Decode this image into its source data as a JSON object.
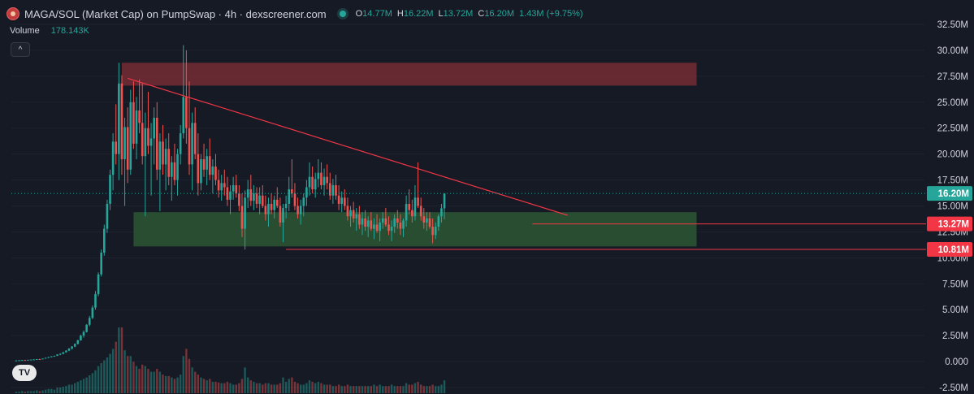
{
  "header": {
    "title": "MAGA/SOL (Market Cap) on PumpSwap · 4h · dexscreener.com",
    "ohlc": {
      "o_label": "O",
      "o_value": "14.77M",
      "h_label": "H",
      "h_value": "16.22M",
      "l_label": "L",
      "l_value": "13.72M",
      "c_label": "C",
      "c_value": "16.20M",
      "change": "1.43M (+9.75%)"
    }
  },
  "volume": {
    "label": "Volume",
    "value": "178.143K"
  },
  "collapse_label": "^",
  "tv_logo_label": "TV",
  "colors": {
    "background": "#161a25",
    "up": "#26a69a",
    "down": "#ef5350",
    "resistance_zone": "#7a2d36",
    "support_zone": "#2d5a34",
    "trendline": "#f23645",
    "current_price_tag": "#26a69a",
    "level_tag": "#f23645"
  },
  "chart_data": {
    "type": "candlestick",
    "y_axis": {
      "ylim": [
        -2500000,
        32500000
      ],
      "ticks": [
        "32.50M",
        "30.00M",
        "27.50M",
        "25.00M",
        "22.50M",
        "20.00M",
        "17.50M",
        "15.00M",
        "12.50M",
        "10.00M",
        "7.50M",
        "5.00M",
        "2.50M",
        "0.000",
        "-2.50M"
      ],
      "tick_values": [
        32500000,
        30000000,
        27500000,
        25000000,
        22500000,
        20000000,
        17500000,
        15000000,
        12500000,
        10000000,
        7500000,
        5000000,
        2500000,
        0,
        -2500000
      ]
    },
    "price_tags": [
      {
        "label": "16.20M",
        "value": 16200000,
        "kind": "current"
      },
      {
        "label": "13.27M",
        "value": 13270000,
        "kind": "level"
      },
      {
        "label": "10.81M",
        "value": 10810000,
        "kind": "level"
      }
    ],
    "zones": [
      {
        "name": "resistance",
        "from_index": 36,
        "to_index": 232,
        "y_low": 26600000,
        "y_high": 28800000
      },
      {
        "name": "support",
        "from_index": 40,
        "to_index": 232,
        "y_low": 11100000,
        "y_high": 14400000
      }
    ],
    "trendline": {
      "from_index": 38,
      "from_value": 27300000,
      "to_index": 188,
      "to_value": 14100000
    },
    "levels": [
      {
        "value": 13270000,
        "from_index": 176
      },
      {
        "value": 10810000,
        "from_index": 92
      }
    ],
    "candles": [
      [
        0.1,
        0.12,
        0.08,
        0.11,
        2
      ],
      [
        0.11,
        0.14,
        0.1,
        0.13,
        2
      ],
      [
        0.13,
        0.16,
        0.12,
        0.15,
        3
      ],
      [
        0.15,
        0.17,
        0.13,
        0.14,
        2
      ],
      [
        0.14,
        0.18,
        0.14,
        0.17,
        3
      ],
      [
        0.17,
        0.2,
        0.16,
        0.19,
        3
      ],
      [
        0.19,
        0.22,
        0.17,
        0.21,
        3
      ],
      [
        0.21,
        0.25,
        0.2,
        0.24,
        4
      ],
      [
        0.24,
        0.27,
        0.22,
        0.23,
        3
      ],
      [
        0.23,
        0.3,
        0.23,
        0.29,
        4
      ],
      [
        0.29,
        0.38,
        0.28,
        0.36,
        5
      ],
      [
        0.36,
        0.45,
        0.35,
        0.43,
        6
      ],
      [
        0.43,
        0.52,
        0.4,
        0.5,
        6
      ],
      [
        0.5,
        0.58,
        0.46,
        0.55,
        5
      ],
      [
        0.55,
        0.7,
        0.54,
        0.68,
        8
      ],
      [
        0.68,
        0.8,
        0.62,
        0.74,
        8
      ],
      [
        0.74,
        0.92,
        0.72,
        0.9,
        9
      ],
      [
        0.9,
        1.1,
        0.85,
        1.05,
        10
      ],
      [
        1.05,
        1.3,
        1.0,
        1.25,
        12
      ],
      [
        1.25,
        1.5,
        1.15,
        1.45,
        12
      ],
      [
        1.45,
        1.75,
        1.38,
        1.7,
        14
      ],
      [
        1.7,
        2.1,
        1.65,
        2.05,
        16
      ],
      [
        2.05,
        2.6,
        2.0,
        2.5,
        18
      ],
      [
        2.5,
        3.0,
        2.3,
        2.85,
        20
      ],
      [
        2.85,
        3.6,
        2.8,
        3.55,
        22
      ],
      [
        3.55,
        4.4,
        3.4,
        4.2,
        25
      ],
      [
        4.2,
        5.4,
        4.1,
        5.2,
        28
      ],
      [
        5.2,
        6.8,
        5.0,
        6.5,
        32
      ],
      [
        6.5,
        8.6,
        6.3,
        8.4,
        38
      ],
      [
        8.4,
        10.8,
        8.2,
        10.5,
        42
      ],
      [
        10.5,
        13.2,
        10.2,
        12.8,
        46
      ],
      [
        12.8,
        15.6,
        12.4,
        15.2,
        50
      ],
      [
        15.2,
        18.5,
        14.6,
        18.0,
        55
      ],
      [
        18.0,
        22.0,
        16.5,
        21.2,
        62
      ],
      [
        21.2,
        24.8,
        19.0,
        20.0,
        72
      ],
      [
        20.0,
        28.8,
        17.5,
        26.8,
        92
      ],
      [
        26.8,
        27.6,
        18.0,
        19.5,
        92
      ],
      [
        19.5,
        23.5,
        15.0,
        22.6,
        60
      ],
      [
        22.6,
        24.5,
        17.2,
        18.5,
        52
      ],
      [
        18.5,
        26.2,
        18.0,
        25.0,
        52
      ],
      [
        25.0,
        27.0,
        20.5,
        21.0,
        44
      ],
      [
        21.0,
        25.5,
        19.5,
        24.2,
        38
      ],
      [
        24.2,
        27.2,
        22.0,
        23.0,
        34
      ],
      [
        23.0,
        26.8,
        19.0,
        19.8,
        40
      ],
      [
        19.8,
        24.0,
        14.0,
        22.5,
        38
      ],
      [
        22.5,
        26.0,
        20.0,
        20.8,
        34
      ],
      [
        20.8,
        23.0,
        16.0,
        21.5,
        30
      ],
      [
        21.5,
        24.5,
        19.0,
        23.5,
        30
      ],
      [
        23.5,
        25.0,
        17.5,
        18.5,
        34
      ],
      [
        18.5,
        22.0,
        14.5,
        21.2,
        30
      ],
      [
        21.2,
        22.8,
        18.0,
        19.0,
        26
      ],
      [
        19.0,
        21.5,
        16.5,
        20.5,
        24
      ],
      [
        20.5,
        22.0,
        17.0,
        17.8,
        24
      ],
      [
        17.8,
        19.8,
        15.5,
        19.2,
        22
      ],
      [
        19.2,
        21.0,
        17.0,
        17.5,
        20
      ],
      [
        17.5,
        20.5,
        16.0,
        20.0,
        22
      ],
      [
        20.0,
        22.8,
        19.0,
        22.0,
        26
      ],
      [
        22.0,
        30.5,
        21.5,
        25.5,
        52
      ],
      [
        25.5,
        30.0,
        21.0,
        22.5,
        62
      ],
      [
        22.5,
        27.0,
        18.0,
        19.0,
        48
      ],
      [
        19.0,
        24.0,
        16.5,
        23.0,
        36
      ],
      [
        23.0,
        24.5,
        19.5,
        20.0,
        30
      ],
      [
        20.0,
        22.0,
        16.0,
        17.2,
        26
      ],
      [
        17.2,
        20.0,
        16.5,
        19.5,
        22
      ],
      [
        19.5,
        21.0,
        17.8,
        18.5,
        20
      ],
      [
        18.5,
        20.5,
        17.0,
        19.8,
        18
      ],
      [
        19.8,
        21.5,
        17.5,
        18.0,
        20
      ],
      [
        18.0,
        19.5,
        16.2,
        18.8,
        16
      ],
      [
        18.8,
        20.0,
        17.0,
        17.5,
        16
      ],
      [
        17.5,
        18.5,
        15.8,
        16.5,
        15
      ],
      [
        16.5,
        18.0,
        15.5,
        17.2,
        14
      ],
      [
        17.2,
        18.5,
        16.0,
        16.8,
        14
      ],
      [
        16.8,
        17.8,
        15.0,
        15.6,
        16
      ],
      [
        15.6,
        17.0,
        14.2,
        16.4,
        14
      ],
      [
        16.4,
        17.8,
        15.6,
        17.0,
        12
      ],
      [
        17.0,
        18.0,
        15.8,
        16.2,
        12
      ],
      [
        16.2,
        17.0,
        14.5,
        15.0,
        14
      ],
      [
        15.0,
        16.2,
        12.0,
        12.8,
        20
      ],
      [
        12.8,
        16.5,
        10.8,
        15.8,
        36
      ],
      [
        15.8,
        17.5,
        14.8,
        16.6,
        22
      ],
      [
        16.6,
        18.0,
        15.0,
        15.5,
        18
      ],
      [
        15.5,
        17.0,
        14.6,
        16.2,
        16
      ],
      [
        16.2,
        16.8,
        14.8,
        15.2,
        14
      ],
      [
        15.2,
        16.8,
        14.2,
        16.0,
        14
      ],
      [
        16.0,
        17.0,
        14.8,
        15.0,
        12
      ],
      [
        15.0,
        16.0,
        13.6,
        14.2,
        14
      ],
      [
        14.2,
        15.8,
        13.0,
        15.2,
        14
      ],
      [
        15.2,
        16.2,
        14.2,
        14.6,
        12
      ],
      [
        14.6,
        16.0,
        13.8,
        15.6,
        12
      ],
      [
        15.6,
        16.8,
        14.8,
        15.0,
        12
      ],
      [
        15.0,
        15.8,
        13.0,
        13.4,
        14
      ],
      [
        13.4,
        15.2,
        11.5,
        14.8,
        22
      ],
      [
        14.8,
        16.0,
        13.8,
        15.2,
        16
      ],
      [
        15.2,
        17.8,
        14.5,
        16.6,
        20
      ],
      [
        16.6,
        19.5,
        15.8,
        16.2,
        22
      ],
      [
        16.2,
        17.2,
        14.6,
        15.0,
        16
      ],
      [
        15.0,
        15.8,
        13.8,
        14.2,
        14
      ],
      [
        14.2,
        15.6,
        13.2,
        15.0,
        12
      ],
      [
        15.0,
        16.2,
        14.0,
        15.8,
        12
      ],
      [
        15.8,
        17.5,
        15.0,
        16.8,
        14
      ],
      [
        16.8,
        19.2,
        16.0,
        17.8,
        18
      ],
      [
        17.8,
        18.8,
        16.2,
        16.6,
        16
      ],
      [
        16.6,
        18.2,
        15.8,
        17.6,
        14
      ],
      [
        17.6,
        19.5,
        16.8,
        18.2,
        16
      ],
      [
        18.2,
        19.2,
        16.6,
        17.0,
        14
      ],
      [
        17.0,
        18.6,
        16.0,
        17.8,
        12
      ],
      [
        17.8,
        19.0,
        16.6,
        17.2,
        12
      ],
      [
        17.2,
        18.2,
        15.6,
        16.0,
        12
      ],
      [
        16.0,
        17.6,
        15.2,
        17.0,
        10
      ],
      [
        17.0,
        18.0,
        15.6,
        16.0,
        10
      ],
      [
        16.0,
        17.0,
        14.6,
        15.2,
        12
      ],
      [
        15.2,
        16.4,
        14.4,
        15.8,
        10
      ],
      [
        15.8,
        16.6,
        14.6,
        15.0,
        10
      ],
      [
        15.0,
        15.8,
        13.6,
        14.0,
        12
      ],
      [
        14.0,
        15.0,
        13.0,
        14.6,
        10
      ],
      [
        14.6,
        15.4,
        13.4,
        13.8,
        10
      ],
      [
        13.8,
        14.8,
        12.6,
        14.2,
        10
      ],
      [
        14.2,
        15.0,
        12.8,
        13.2,
        10
      ],
      [
        13.2,
        14.4,
        12.2,
        13.8,
        10
      ],
      [
        13.8,
        14.6,
        12.6,
        13.0,
        10
      ],
      [
        13.0,
        14.0,
        12.0,
        13.6,
        10
      ],
      [
        13.6,
        14.4,
        12.6,
        12.8,
        10
      ],
      [
        12.8,
        13.8,
        11.8,
        13.2,
        12
      ],
      [
        13.2,
        14.2,
        12.4,
        12.6,
        10
      ],
      [
        12.6,
        13.8,
        11.6,
        13.4,
        12
      ],
      [
        13.4,
        14.4,
        12.8,
        13.8,
        10
      ],
      [
        13.8,
        14.8,
        13.0,
        13.2,
        10
      ],
      [
        13.2,
        14.0,
        12.2,
        12.6,
        10
      ],
      [
        12.6,
        13.6,
        11.6,
        13.0,
        12
      ],
      [
        13.0,
        14.2,
        12.4,
        13.8,
        10
      ],
      [
        13.8,
        14.6,
        12.8,
        13.4,
        10
      ],
      [
        13.4,
        14.2,
        12.2,
        12.8,
        10
      ],
      [
        12.8,
        13.8,
        12.0,
        13.6,
        10
      ],
      [
        13.6,
        16.0,
        13.0,
        15.2,
        14
      ],
      [
        15.2,
        16.6,
        14.2,
        14.6,
        12
      ],
      [
        14.6,
        15.6,
        13.4,
        14.0,
        12
      ],
      [
        14.0,
        17.0,
        13.6,
        15.8,
        14
      ],
      [
        15.8,
        19.2,
        14.8,
        15.0,
        16
      ],
      [
        15.0,
        15.8,
        13.6,
        14.0,
        12
      ],
      [
        14.0,
        14.8,
        12.8,
        13.4,
        10
      ],
      [
        13.4,
        14.4,
        12.6,
        13.8,
        10
      ],
      [
        13.8,
        14.4,
        12.8,
        13.0,
        10
      ],
      [
        13.0,
        13.8,
        11.4,
        12.2,
        12
      ],
      [
        12.2,
        13.4,
        11.8,
        13.0,
        10
      ],
      [
        13.0,
        14.2,
        12.6,
        14.0,
        10
      ],
      [
        14.0,
        15.2,
        13.4,
        14.77,
        12
      ],
      [
        14.77,
        16.22,
        13.72,
        16.2,
        18
      ]
    ]
  }
}
